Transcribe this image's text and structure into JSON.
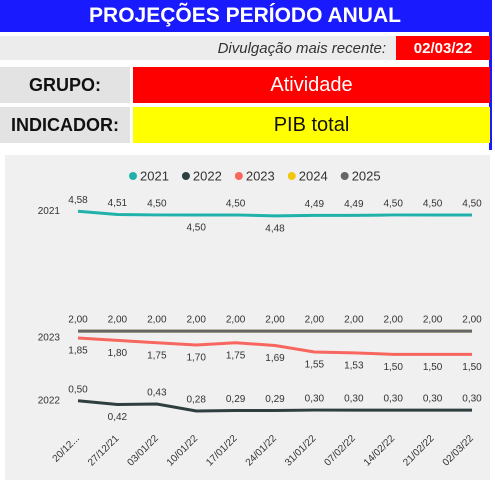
{
  "header": {
    "title": "PROJEÇÕES PERÍODO ANUAL",
    "release_label": "Divulgação mais recente:",
    "release_date": "02/03/22"
  },
  "filters": {
    "group_label": "GRUPO:",
    "group_value": "Atividade",
    "indicator_label": "INDICADOR:",
    "indicator_value": "PIB total"
  },
  "chart_data": {
    "type": "line",
    "categories": [
      "20/12...",
      "27/12/21",
      "03/01/22",
      "10/01/22",
      "17/01/22",
      "24/01/22",
      "31/01/22",
      "07/02/22",
      "14/02/22",
      "21/02/22",
      "02/03/22"
    ],
    "side_labels": [
      "2021",
      "2023",
      "2022"
    ],
    "ylim": [
      0,
      4.8
    ],
    "series": [
      {
        "name": "2021",
        "color": "#20b2aa",
        "values": [
          4.58,
          4.51,
          4.5,
          4.5,
          4.5,
          4.48,
          4.49,
          4.49,
          4.5,
          4.5,
          4.5
        ],
        "value_labels": [
          "4,58",
          "4,51",
          "4,50",
          "4,50",
          "4,50",
          "4,48",
          "4,49",
          "4,49",
          "4,50",
          "4,50",
          "4,50"
        ]
      },
      {
        "name": "2022",
        "color": "#2f3f3f",
        "values": [
          0.5,
          0.42,
          0.43,
          0.28,
          0.29,
          0.29,
          0.3,
          0.3,
          0.3,
          0.3,
          0.3
        ],
        "value_labels": [
          "0,50",
          "0,42",
          "0,43",
          "0,28",
          "0,29",
          "0,29",
          "0,30",
          "0,30",
          "0,30",
          "0,30",
          "0,30"
        ]
      },
      {
        "name": "2023",
        "color": "#f8675f",
        "values": [
          1.85,
          1.8,
          1.75,
          1.7,
          1.75,
          1.69,
          1.55,
          1.53,
          1.5,
          1.5,
          1.5
        ],
        "value_labels": [
          "1,85",
          "1,80",
          "1,75",
          "1,70",
          "1,75",
          "1,69",
          "1,55",
          "1,53",
          "1,50",
          "1,50",
          "1,50"
        ]
      },
      {
        "name": "2024",
        "color": "#f2c80f",
        "values": [
          2.0,
          2.0,
          2.0,
          2.0,
          2.0,
          2.0,
          2.0,
          2.0,
          2.0,
          2.0,
          2.0
        ],
        "value_labels": [
          "2,00",
          "2,00",
          "2,00",
          "2,00",
          "2,00",
          "2,00",
          "2,00",
          "2,00",
          "2,00",
          "2,00",
          "2,00"
        ]
      },
      {
        "name": "2025",
        "color": "#666666",
        "values": [
          2.0,
          2.0,
          2.0,
          2.0,
          2.0,
          2.0,
          2.0,
          2.0,
          2.0,
          2.0,
          2.0
        ]
      }
    ]
  }
}
